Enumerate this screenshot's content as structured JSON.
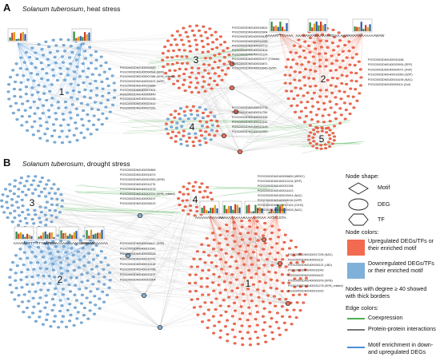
{
  "panels": {
    "A": {
      "letter": "A",
      "species": "Solanum tuberosum",
      "condition": ", heat stress"
    },
    "B": {
      "letter": "B",
      "species": "Solanum tuberosum",
      "condition": ", drought stress"
    }
  },
  "clusters_a": [
    "1",
    "2",
    "3",
    "4",
    "5"
  ],
  "clusters_b": [
    "1",
    "2",
    "3",
    "4"
  ],
  "motifs_a": [
    "AAAAATTTAAAA",
    "AAAAAAAAAAAAAARGAA",
    "AAWAAAAWAAAAAAWAW"
  ],
  "motifs_b": [
    "AAAAWATTT",
    "TTTAATTAA",
    "AAAAAAAAAAAAAAAWAAAAA",
    "AAWAAAAAAAA",
    "AAAAAAAAAAAA",
    "AAAAAAAAAAA",
    "AAAAAATAAA",
    "AATACGTA"
  ],
  "genes_a": [
    "PGSC0003DMG400016814",
    "PGSC0003DMG400023904",
    "PGSC0003DMG400009411",
    "PGSC0003DMG400014265",
    "PGSC0003DMG400025719",
    "PGSC0003DMG400020414",
    "PGSC0003DMG400031124",
    "PGSC0003DMG400021477 (Trihelix)",
    "PGSC0003DMG400016871",
    "PGSC0003DMG400019549 (bZIP)",
    "PGSC0003DMG400021849",
    "PGSC0003DMG400004594 (ERF)",
    "PGSC0003DMG400007986 (MYB_related)",
    "PGSC0003DMG400003101 (bZIP)",
    "PGSC0003DMG400025864",
    "PGSC0003DMG400007401",
    "PGSC0003DMG400005440",
    "PGSC0003DMG400014226",
    "PGSC0003DMG400022412",
    "PGSC0003DMG400027931",
    "PGSC0003DMG400012715",
    "PGSC0003DMG400011754",
    "PGSC0003DMG400000184",
    "PGSC0003DMG400012141",
    "PGSC0003DMG400013149",
    "PGSC0003DMG400021300",
    "PGSC0003DMG400016186",
    "PGSC0003DMG400029934 (ERF)",
    "PGSC0003DMG400004071 (HSF)",
    "PGSC0003DMG400015069 (bZIP)",
    "PGSC0003DMG400016195 (NAC)",
    "PGSC0003DMG400005111 (Dof)"
  ],
  "genes_b": [
    "PGSC0003DMG400030869",
    "PGSC0003DMG400015074",
    "PGSC0003DMG400001553 (MYB)",
    "PGSC0003DMG400011276",
    "PGSC0003DMG400019278",
    "PGSC0003DMG400002914 (MYB_related)",
    "PGSC0003DMG400005197",
    "PGSC0003DMG400028120",
    "PGSC0003DMG400008809 (WRKY)",
    "PGSC0003DMG400013134 (ERF)",
    "PGSC0003DMG400022156",
    "PGSC0003DMG400014413",
    "PGSC0003DMG400015914 (NAC)",
    "PGSC0003DMG400008116 (bZIP)",
    "PGSC0003DMG400017424 (C2H2)",
    "PGSC0003DMG400019003 (NAC)",
    "PGSC0003DMG400008447 (HSF)",
    "PGSC0003DMG400012041",
    "PGSC0003DMG400025318",
    "PGSC0003DMG400016742",
    "PGSC0003DMG400015116",
    "PGSC0003DMG400014786",
    "PGSC0003DMG400023197",
    "PGSC0003DMG400002904",
    "PGSC0003DMG400017205 (NAC)",
    "PGSC0003DMG400003112",
    "PGSC0003DMG400026131 (LBD)",
    "PGSC0003DMG400016043",
    "PGSC0003DMG400004422",
    "PGSC0003DMG400000978 (MYB)",
    "PGSC0003DMG400031278 (MYB_related)",
    "PGSC0003DMG400019015"
  ],
  "legend": {
    "node_shape_title": "Node shape:",
    "shapes": [
      "Motif",
      "DEG",
      "TF"
    ],
    "node_colors_title": "Node colors:",
    "up_label": "Upregulated DEGs/TFs or their enriched motif",
    "down_label": "Downregulated DEGs/TFs or their enriched motif",
    "degree_note": "Nodes with degree ≥ 40 showed with thick borders",
    "edge_colors_title": "Edge colors:",
    "edges": [
      "Coexpression",
      "Protein-protein interactions",
      "Motif enrichment in down- and upregulated DEGs"
    ]
  },
  "colors": {
    "up": "#f26a4f",
    "up_dark": "#c9412a",
    "down": "#7fb0d9",
    "down_dark": "#3d7bb5",
    "coexpression": "#4caf50",
    "ppi": "#777777",
    "motif_edge": "#4a90d9",
    "edge_grey": "#b7b7b7"
  }
}
